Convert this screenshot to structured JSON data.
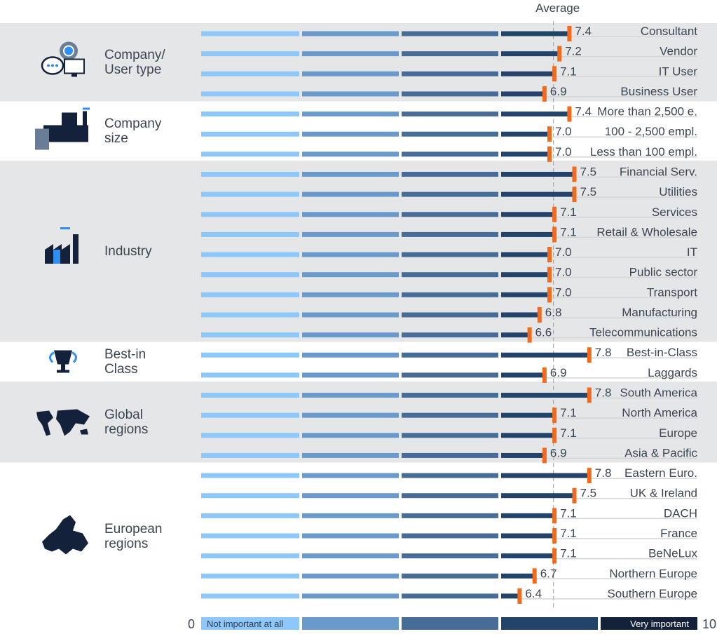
{
  "chart_data": {
    "type": "bar",
    "average_label": "Average",
    "average_value": 7.08,
    "xlim": [
      0,
      10
    ],
    "scale_labels": {
      "min": "0",
      "max": "10",
      "low": "Not important at all",
      "high": "Very important"
    },
    "colors": {
      "band": "#e5e6e8",
      "seg1": "#8ec8fb",
      "seg2": "#6a9acb",
      "seg3": "#476c97",
      "seg4": "#24436a",
      "seg5": "#13223a",
      "marker": "#f26b1d",
      "text": "#3c4653"
    },
    "groups": [
      {
        "title": [
          "Company/",
          "User type"
        ],
        "icon": "chat-gear-monitor-icon",
        "shaded": true,
        "items": [
          {
            "label": "Consultant",
            "value": 7.4
          },
          {
            "label": "Vendor",
            "value": 7.2
          },
          {
            "label": "IT User",
            "value": 7.1
          },
          {
            "label": "Business User",
            "value": 6.9
          }
        ]
      },
      {
        "title": [
          "Company",
          "size"
        ],
        "icon": "factory-building-icon",
        "shaded": false,
        "items": [
          {
            "label": "More than 2,500 e.",
            "value": 7.4
          },
          {
            "label": "100 - 2,500 empl.",
            "value": 7.0
          },
          {
            "label": "Less than 100 empl.",
            "value": 7.0
          }
        ]
      },
      {
        "title": [
          "Industry"
        ],
        "icon": "factory-icon",
        "shaded": true,
        "items": [
          {
            "label": "Financial Serv.",
            "value": 7.5
          },
          {
            "label": "Utilities",
            "value": 7.5
          },
          {
            "label": "Services",
            "value": 7.1
          },
          {
            "label": "Retail & Wholesale",
            "value": 7.1
          },
          {
            "label": "IT",
            "value": 7.0
          },
          {
            "label": "Public sector",
            "value": 7.0
          },
          {
            "label": "Transport",
            "value": 7.0
          },
          {
            "label": "Manufacturing",
            "value": 6.8
          },
          {
            "label": "Telecommunications",
            "value": 6.6
          }
        ]
      },
      {
        "title": [
          "Best-in",
          "Class"
        ],
        "icon": "trophy-icon",
        "shaded": false,
        "items": [
          {
            "label": "Best-in-Class",
            "value": 7.8
          },
          {
            "label": "Laggards",
            "value": 6.9
          }
        ]
      },
      {
        "title": [
          "Global",
          "regions"
        ],
        "icon": "world-map-icon",
        "shaded": true,
        "items": [
          {
            "label": "South America",
            "value": 7.8
          },
          {
            "label": "North America",
            "value": 7.1
          },
          {
            "label": "Europe",
            "value": 7.1
          },
          {
            "label": "Asia & Pacific",
            "value": 6.9
          }
        ]
      },
      {
        "title": [
          "European",
          "regions"
        ],
        "icon": "europe-map-icon",
        "shaded": false,
        "items": [
          {
            "label": "Eastern Euro.",
            "value": 7.8
          },
          {
            "label": "UK & Ireland",
            "value": 7.5
          },
          {
            "label": "DACH",
            "value": 7.1
          },
          {
            "label": "France",
            "value": 7.1
          },
          {
            "label": "BeNeLux",
            "value": 7.1
          },
          {
            "label": "Northern Europe",
            "value": 6.7
          },
          {
            "label": "Southern Europe",
            "value": 6.4
          }
        ]
      }
    ]
  }
}
